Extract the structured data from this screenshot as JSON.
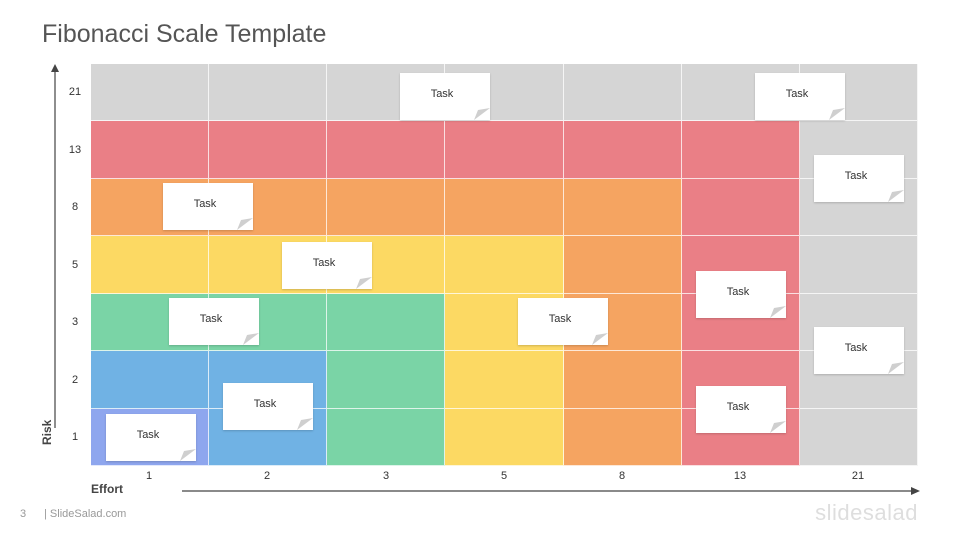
{
  "title": "Fibonacci Scale Template",
  "axes": {
    "y_title": "Risk",
    "x_title": "Effort",
    "y_labels": [
      "21",
      "13",
      "8",
      "5",
      "3",
      "2",
      "1"
    ],
    "x_labels": [
      "1",
      "2",
      "3",
      "5",
      "8",
      "13",
      "21"
    ]
  },
  "colors": {
    "grey": "#d5d5d5",
    "red": "#ea7f86",
    "orange": "#f5a461",
    "yellow": "#fcd963",
    "green": "#7ad4a6",
    "blue": "#70b2e4",
    "purple": "#8ea6ee",
    "axis": "#444444"
  },
  "grid_colors": [
    [
      "grey",
      "grey",
      "grey",
      "grey",
      "grey",
      "grey",
      "grey"
    ],
    [
      "red",
      "red",
      "red",
      "red",
      "red",
      "red",
      "grey"
    ],
    [
      "orange",
      "orange",
      "orange",
      "orange",
      "orange",
      "red",
      "grey"
    ],
    [
      "yellow",
      "yellow",
      "yellow",
      "yellow",
      "orange",
      "red",
      "grey"
    ],
    [
      "green",
      "green",
      "green",
      "yellow",
      "orange",
      "red",
      "grey"
    ],
    [
      "blue",
      "blue",
      "green",
      "yellow",
      "orange",
      "red",
      "grey"
    ],
    [
      "purple",
      "blue",
      "green",
      "yellow",
      "orange",
      "red",
      "grey"
    ]
  ],
  "tasks": [
    {
      "label": "Task"
    },
    {
      "label": "Task"
    },
    {
      "label": "Task"
    },
    {
      "label": "Task"
    },
    {
      "label": "Task"
    },
    {
      "label": "Task"
    },
    {
      "label": "Task"
    },
    {
      "label": "Task"
    },
    {
      "label": "Task"
    },
    {
      "label": "Task"
    },
    {
      "label": "Task"
    },
    {
      "label": "Task"
    }
  ],
  "footer": {
    "page_number": "3",
    "site": "| SlideSalad.com",
    "logo": "slidesalad"
  }
}
